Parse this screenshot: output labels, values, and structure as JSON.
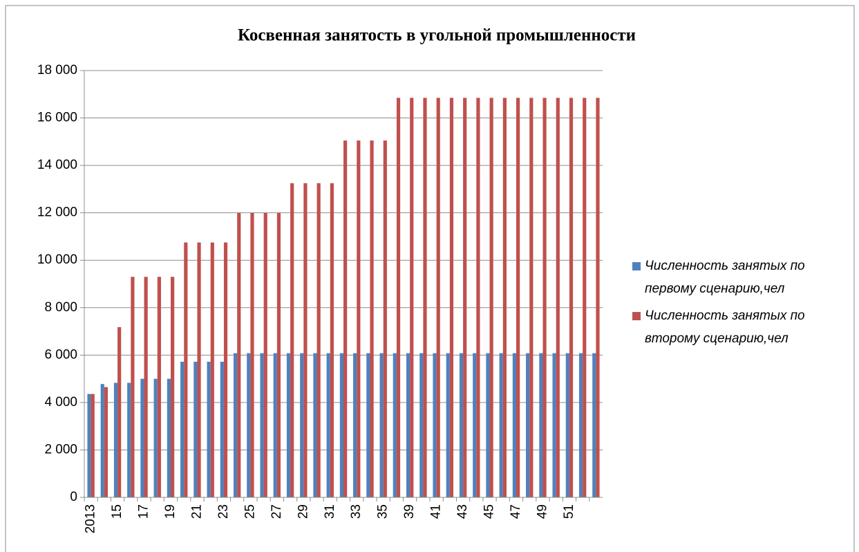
{
  "chart_data": {
    "type": "bar",
    "title": "Косвенная занятость в угольной промышленности",
    "categories": [
      "2013",
      null,
      "15",
      null,
      "17",
      null,
      "19",
      null,
      "21",
      null,
      "23",
      null,
      "25",
      null,
      "27",
      null,
      "29",
      null,
      "31",
      null,
      "33",
      null,
      "35",
      null,
      "39",
      null,
      "41",
      null,
      "43",
      null,
      "45",
      null,
      "47",
      null,
      "49",
      null,
      "51",
      null,
      null
    ],
    "series": [
      {
        "name": "Численность занятых по первому сценарию,чел",
        "color": "#4f81bd",
        "values": [
          4360,
          4780,
          4830,
          4830,
          5000,
          5000,
          5000,
          5720,
          5720,
          5720,
          5720,
          6080,
          6080,
          6080,
          6080,
          6080,
          6080,
          6080,
          6080,
          6080,
          6080,
          6080,
          6080,
          6080,
          6080,
          6080,
          6080,
          6080,
          6080,
          6080,
          6080,
          6080,
          6080,
          6080,
          6080,
          6080,
          6080,
          6080,
          6080
        ]
      },
      {
        "name": "Численность занятых по второму сценарию,чел",
        "color": "#c0504d",
        "values": [
          4360,
          4650,
          7180,
          9300,
          9300,
          9300,
          9300,
          10750,
          10750,
          10750,
          10750,
          12000,
          12000,
          12000,
          12000,
          13250,
          13250,
          13250,
          13250,
          15050,
          15050,
          15050,
          15050,
          16850,
          16850,
          16850,
          16850,
          16850,
          16850,
          16850,
          16850,
          16850,
          16850,
          16850,
          16850,
          16850,
          16850,
          16850,
          16850
        ]
      }
    ],
    "ylim": [
      0,
      18000
    ],
    "yticks": [
      0,
      {
        "value": 2000,
        "label": "2 000"
      },
      {
        "value": 4000,
        "label": "4 000"
      },
      {
        "value": 6000,
        "label": "6 000"
      },
      {
        "value": 8000,
        "label": "8 000"
      },
      {
        "value": 10000,
        "label": "10 000"
      },
      {
        "value": 12000,
        "label": "12 000"
      },
      {
        "value": 14000,
        "label": "14 000"
      },
      {
        "value": 16000,
        "label": "16 000"
      },
      {
        "value": 18000,
        "label": "18 000"
      }
    ],
    "grid": true,
    "legend": "right"
  }
}
